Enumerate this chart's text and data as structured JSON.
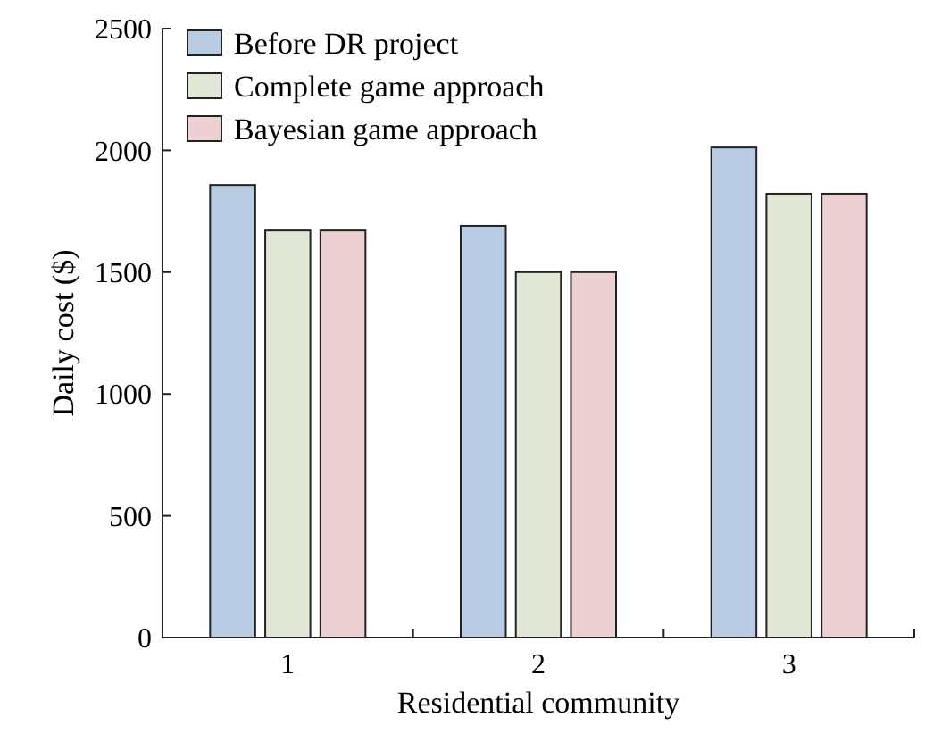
{
  "chart_data": {
    "type": "bar",
    "xlabel": "Residential community",
    "ylabel": "Daily cost ($)",
    "categories": [
      "1",
      "2",
      "3"
    ],
    "series": [
      {
        "name": "Before DR project",
        "color": "#b8cde4",
        "values": [
          1858,
          1690,
          2012
        ]
      },
      {
        "name": "Complete game approach",
        "color": "#e1e8d6",
        "values": [
          1671,
          1500,
          1822
        ]
      },
      {
        "name": "Bayesian game approach",
        "color": "#edd0d1",
        "values": [
          1671,
          1500,
          1822
        ]
      }
    ],
    "ylim": [
      0,
      2500
    ],
    "yticks": [
      0,
      500,
      1000,
      1500,
      2000,
      2500
    ],
    "grid": false,
    "legend": "top left"
  }
}
